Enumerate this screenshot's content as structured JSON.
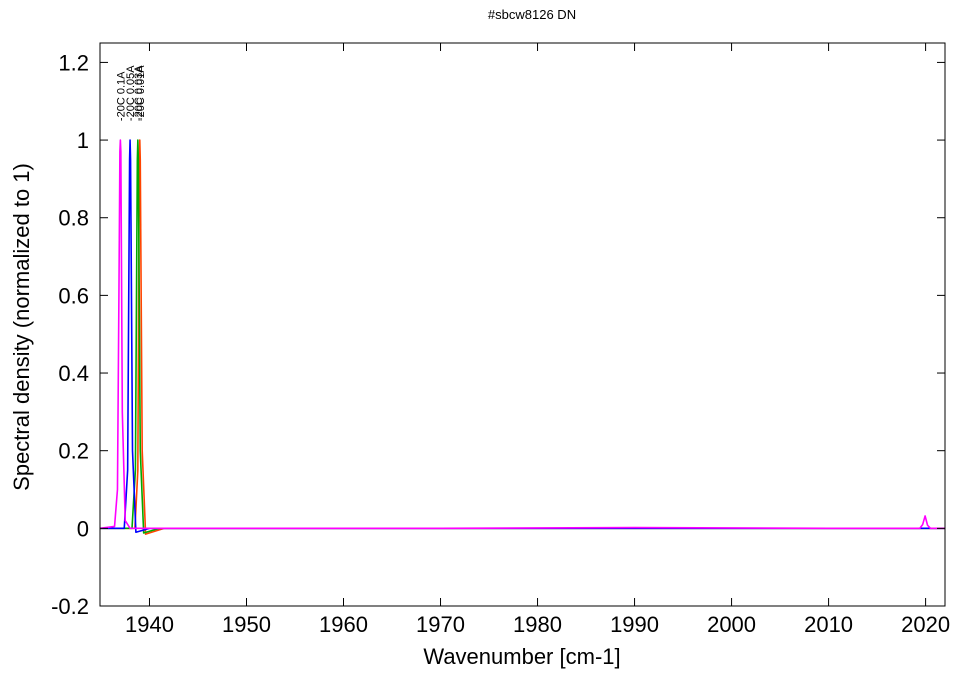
{
  "chart_data": {
    "type": "line",
    "title": "#sbcw8126 DN",
    "xlabel": "Wavenumber [cm-1]",
    "ylabel": "Spectral density (normalized to 1)",
    "xlim": [
      1934.9,
      2022
    ],
    "ylim": [
      -0.2,
      1.25
    ],
    "xticks": [
      1940,
      1950,
      1960,
      1970,
      1980,
      1990,
      2000,
      2010,
      2020
    ],
    "yticks": [
      -0.2,
      0,
      0.2,
      0.4,
      0.6,
      0.8,
      1,
      1.2
    ],
    "ytick_labels": [
      "-0.2",
      "0",
      "0.2",
      "0.4",
      "0.6",
      "0.8",
      "1",
      "1.2"
    ],
    "grid": false,
    "legend": "none",
    "series": [
      {
        "name": "-20C 0.1A",
        "color": "#ff00ff",
        "x": [
          1934.9,
          1936.4,
          1936.7,
          1936.85,
          1936.95,
          1937.0,
          1937.05,
          1937.2,
          1937.5,
          1938.0,
          1950,
          1970,
          1990,
          2010,
          2019.4,
          2019.7,
          2019.95,
          2020.2,
          2020.5,
          2022
        ],
        "y": [
          0.0,
          0.005,
          0.1,
          0.6,
          0.97,
          1.0,
          0.97,
          0.3,
          0.02,
          0.0,
          0.0,
          0.0,
          0.002,
          0.0,
          0.0,
          0.01,
          0.032,
          0.008,
          0.0,
          0.0
        ]
      },
      {
        "name": "-20C 0.05A",
        "color": "#0000ff",
        "x": [
          1934.9,
          1937.4,
          1937.75,
          1937.95,
          1938.0,
          1938.05,
          1938.25,
          1938.6,
          1940.0,
          2022
        ],
        "y": [
          0.0,
          0.0,
          0.15,
          0.95,
          1.0,
          0.95,
          0.2,
          -0.01,
          0.0,
          0.0
        ]
      },
      {
        "name": "-20C 0.03A",
        "color": "#00aa00",
        "x": [
          1934.9,
          1938.2,
          1938.55,
          1938.75,
          1938.8,
          1938.85,
          1939.05,
          1939.4,
          1941.0,
          2022
        ],
        "y": [
          0.0,
          0.0,
          0.15,
          0.95,
          1.0,
          0.95,
          0.2,
          -0.012,
          0.0,
          0.0
        ]
      },
      {
        "name": "-20C 0.01A",
        "color": "#ff4400",
        "x": [
          1934.9,
          1938.5,
          1938.8,
          1938.95,
          1939.0,
          1939.05,
          1939.25,
          1939.6,
          1941.5,
          2022
        ],
        "y": [
          0.0,
          0.0,
          0.15,
          0.95,
          1.0,
          0.95,
          0.2,
          -0.015,
          0.0,
          0.0
        ]
      }
    ],
    "annotations": [
      {
        "text": "-20C 0.1A",
        "x": 1937.0
      },
      {
        "text": "-20C 0.05A",
        "x": 1938.0
      },
      {
        "text": "-20C 0.03A",
        "x": 1938.8
      },
      {
        "text": "-20C 0.01A",
        "x": 1939.0
      }
    ]
  }
}
